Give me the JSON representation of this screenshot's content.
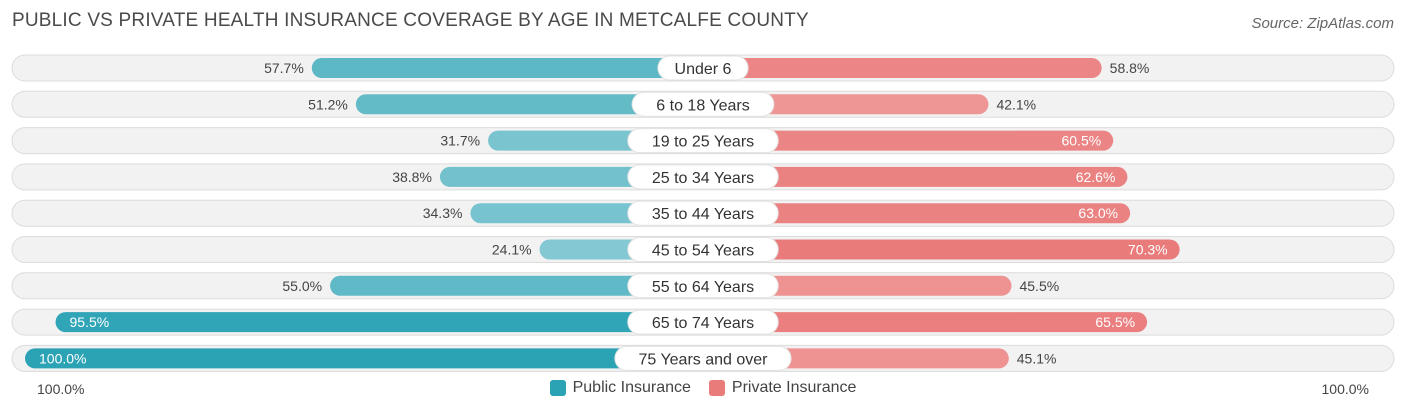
{
  "chart_data": {
    "type": "bar",
    "orientation": "horizontal-diverging",
    "title": "PUBLIC VS PRIVATE HEALTH INSURANCE COVERAGE BY AGE IN METCALFE COUNTY",
    "source": "Source: ZipAtlas.com",
    "categories": [
      "Under 6",
      "6 to 18 Years",
      "19 to 25 Years",
      "25 to 34 Years",
      "35 to 44 Years",
      "45 to 54 Years",
      "55 to 64 Years",
      "65 to 74 Years",
      "75 Years and over"
    ],
    "series": [
      {
        "name": "Public Insurance",
        "color": "#2ba3b5",
        "values": [
          57.7,
          51.2,
          31.7,
          38.8,
          34.3,
          24.1,
          55.0,
          95.5,
          100.0
        ],
        "labels": [
          "57.7%",
          "51.2%",
          "31.7%",
          "38.8%",
          "34.3%",
          "24.1%",
          "55.0%",
          "95.5%",
          "100.0%"
        ]
      },
      {
        "name": "Private Insurance",
        "color": "#ea7b7b",
        "values": [
          58.8,
          42.1,
          60.5,
          62.6,
          63.0,
          70.3,
          45.5,
          65.5,
          45.1
        ],
        "labels": [
          "58.8%",
          "42.1%",
          "60.5%",
          "62.6%",
          "63.0%",
          "70.3%",
          "45.5%",
          "65.5%",
          "45.1%"
        ]
      }
    ],
    "xlim": [
      0,
      100
    ],
    "axis_labels": {
      "left": "100.0%",
      "right": "100.0%"
    },
    "legend_position": "bottom-center"
  }
}
